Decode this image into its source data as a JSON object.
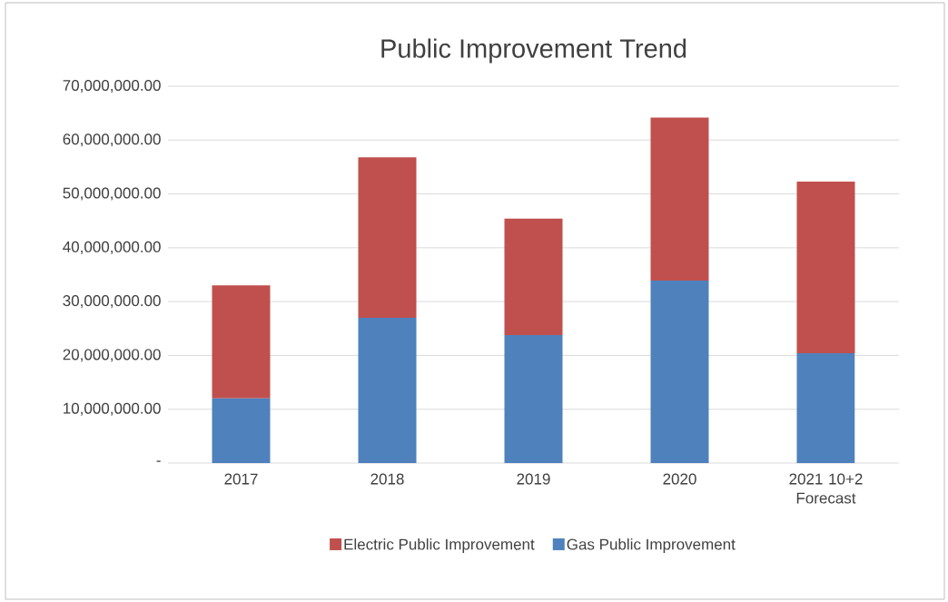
{
  "chart_data": {
    "type": "bar",
    "title": "Public Improvement Trend",
    "stacked": true,
    "categories": [
      "2017",
      "2018",
      "2019",
      "2020",
      "2021 10+2 Forecast"
    ],
    "series": [
      {
        "name": "Gas Public Improvement",
        "color": "#4f81bd",
        "values": [
          12000000,
          27000000,
          23800000,
          33900000,
          20400000
        ]
      },
      {
        "name": "Electric Public Improvement",
        "color": "#c0504d",
        "values": [
          21000000,
          29800000,
          21600000,
          30300000,
          31900000
        ]
      }
    ],
    "ylim": [
      0,
      70000000
    ],
    "yticks": [
      {
        "value": 0,
        "label": "-"
      },
      {
        "value": 10000000,
        "label": "10,000,000.00"
      },
      {
        "value": 20000000,
        "label": "20,000,000.00"
      },
      {
        "value": 30000000,
        "label": "30,000,000.00"
      },
      {
        "value": 40000000,
        "label": "40,000,000.00"
      },
      {
        "value": 50000000,
        "label": "50,000,000.00"
      },
      {
        "value": 60000000,
        "label": "60,000,000.00"
      },
      {
        "value": 70000000,
        "label": "70,000,000.00"
      }
    ],
    "grid": "y",
    "legend": "bottom"
  }
}
